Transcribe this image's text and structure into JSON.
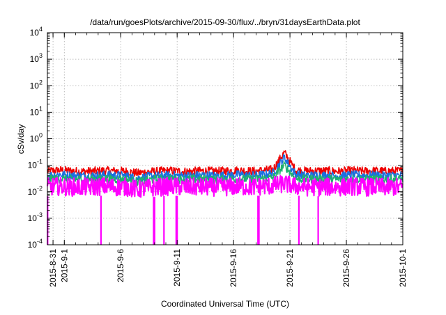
{
  "chart_data": {
    "type": "line",
    "title": "/data/run/goesPlots/archive/2015-09-30/flux/../bryn/31daysEarthData.plot",
    "xlabel": "Coordinated Universal Time (UTC)",
    "ylabel": "cSv/day",
    "yscale": "log",
    "ylim": [
      0.0001,
      10000
    ],
    "xlim": [
      "2015-08-30T12:00",
      "2015-10-01T00:00"
    ],
    "grid": true,
    "y_ticks": [
      {
        "value": 0.0001,
        "base": "10",
        "exp": "-4"
      },
      {
        "value": 0.001,
        "base": "10",
        "exp": "-3"
      },
      {
        "value": 0.01,
        "base": "10",
        "exp": "-2"
      },
      {
        "value": 0.1,
        "base": "10",
        "exp": "-1"
      },
      {
        "value": 1,
        "base": "10",
        "exp": "0"
      },
      {
        "value": 10,
        "base": "10",
        "exp": "1"
      },
      {
        "value": 100,
        "base": "10",
        "exp": "2"
      },
      {
        "value": 1000,
        "base": "10",
        "exp": "3"
      },
      {
        "value": 10000,
        "base": "10",
        "exp": "4"
      }
    ],
    "x_ticks": [
      {
        "date": "2015-08-31",
        "label": "2015-8-31"
      },
      {
        "date": "2015-09-01",
        "label": "2015-9-1"
      },
      {
        "date": "2015-09-06",
        "label": "2015-9-6"
      },
      {
        "date": "2015-09-11",
        "label": "2015-9-11"
      },
      {
        "date": "2015-09-16",
        "label": "2015-9-16"
      },
      {
        "date": "2015-09-21",
        "label": "2015-9-21"
      },
      {
        "date": "2015-09-26",
        "label": "2015-9-26"
      },
      {
        "date": "2015-10-01",
        "label": "2015-10-1"
      }
    ],
    "series": [
      {
        "color": "#ee0000",
        "values": [
          0.06,
          0.065,
          0.062,
          0.058,
          0.06,
          0.063,
          0.061,
          0.059,
          0.05,
          0.057,
          0.06,
          0.062,
          0.058,
          0.06,
          0.061,
          0.059,
          0.062,
          0.064,
          0.06,
          0.062,
          0.07,
          0.3,
          0.065,
          0.06,
          0.062,
          0.061,
          0.059,
          0.063,
          0.06,
          0.062,
          0.06,
          0.061
        ]
      },
      {
        "color": "#1a6fe0",
        "values": [
          0.04,
          0.045,
          0.042,
          0.04,
          0.041,
          0.043,
          0.042,
          0.04,
          0.032,
          0.038,
          0.041,
          0.042,
          0.04,
          0.041,
          0.042,
          0.04,
          0.042,
          0.044,
          0.041,
          0.043,
          0.05,
          0.2,
          0.045,
          0.041,
          0.042,
          0.041,
          0.04,
          0.043,
          0.041,
          0.042,
          0.041,
          0.041
        ]
      },
      {
        "color": "#20b070",
        "values": [
          0.03,
          0.031,
          0.03,
          0.029,
          0.03,
          0.031,
          0.03,
          0.029,
          0.024,
          0.028,
          0.03,
          0.031,
          0.029,
          0.03,
          0.03,
          0.029,
          0.03,
          0.031,
          0.03,
          0.031,
          0.034,
          0.1,
          0.031,
          0.03,
          0.03,
          0.03,
          0.029,
          0.031,
          0.03,
          0.03,
          0.03,
          0.03
        ]
      },
      {
        "color": "#ff00ff",
        "values": [
          0.015,
          0.016,
          0.015,
          0.015,
          0.015,
          0.016,
          0.015,
          0.015,
          0.012,
          0.014,
          0.015,
          0.016,
          0.015,
          0.015,
          0.015,
          0.015,
          0.015,
          0.016,
          0.015,
          0.016,
          0.017,
          0.02,
          0.016,
          0.015,
          0.015,
          0.015,
          0.015,
          0.016,
          0.015,
          0.015,
          0.015,
          0.015
        ]
      }
    ],
    "dropouts": [
      "2015-08-30T12:30",
      "2015-09-04T06:00",
      "2015-09-08T22:00",
      "2015-09-09T00:00",
      "2015-09-09T20:00",
      "2015-09-10T22:00",
      "2015-09-11T00:00",
      "2015-09-18T04:00",
      "2015-09-18T06:00",
      "2015-09-21T19:00",
      "2015-09-23T12:00"
    ]
  }
}
